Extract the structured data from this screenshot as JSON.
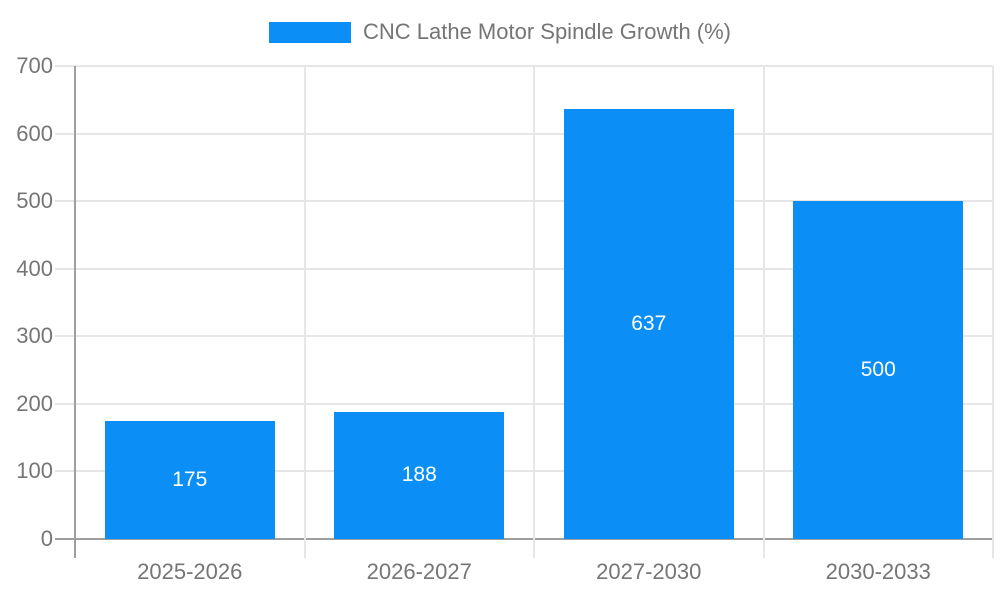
{
  "legend": {
    "swatch": "series-color"
  },
  "colors": {
    "bar": "#0b8ef6",
    "axis_line": "#9e9e9e",
    "gridline": "#e6e6e6",
    "axis_text": "#757575",
    "bar_value_text": "#ffffff",
    "background": "#ffffff"
  },
  "chart_data": {
    "type": "bar",
    "title": "CNC Lathe Motor Spindle Growth (%)",
    "categories": [
      "2025-2026",
      "2026-2027",
      "2027-2030",
      "2030-2033"
    ],
    "values": [
      175,
      188,
      637,
      500
    ],
    "bar_value_labels": [
      "175",
      "188",
      "637",
      "500"
    ],
    "xlabel": "",
    "ylabel": "",
    "ylim": [
      0,
      700
    ],
    "yticks": [
      0,
      100,
      200,
      300,
      400,
      500,
      600,
      700
    ],
    "grid": true,
    "legend_position": "top-center"
  }
}
